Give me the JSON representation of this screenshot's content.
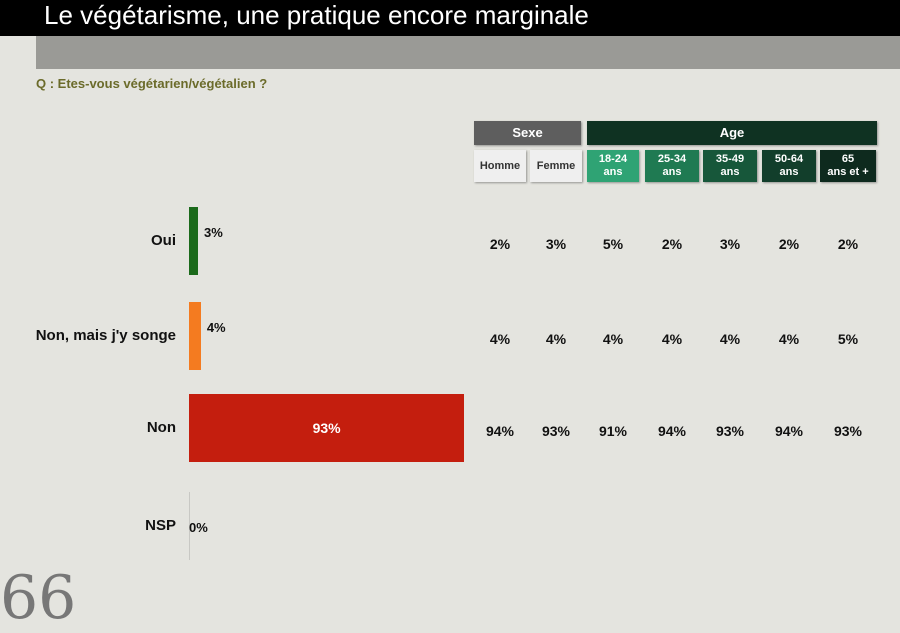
{
  "title": "Le végétarisme, une pratique encore marginale",
  "question": "Q : Etes-vous végétarien/végétalien ?",
  "headers": {
    "sexe": "Sexe",
    "age": "Age",
    "columns": [
      {
        "label": "Homme",
        "group": "sexe",
        "color": "#efefef"
      },
      {
        "label": "Femme",
        "group": "sexe",
        "color": "#efefef"
      },
      {
        "label": "18-24 ans",
        "group": "age",
        "color": "#2fa374"
      },
      {
        "label": "25-34 ans",
        "group": "age",
        "color": "#1f7a52"
      },
      {
        "label": "35-49 ans",
        "group": "age",
        "color": "#17573a"
      },
      {
        "label": "50-64 ans",
        "group": "age",
        "color": "#123e2b"
      },
      {
        "label": "65 ans et +",
        "group": "age",
        "color": "#0e2a1e"
      }
    ],
    "sexe_color": "#5e5e5e",
    "age_color": "#0f3222"
  },
  "chart_data": {
    "type": "bar",
    "title": "Le végétarisme, une pratique encore marginale",
    "categories": [
      "Oui",
      "Non, mais j'y songe",
      "Non",
      "NSP"
    ],
    "values": [
      3,
      4,
      93,
      0
    ],
    "value_labels": [
      "3%",
      "4%",
      "93%",
      "0%"
    ],
    "colors": [
      "#1b6a1b",
      "#f47b20",
      "#c41e0e",
      "#777777"
    ],
    "xlim": [
      0,
      100
    ],
    "table": {
      "columns": [
        "Homme",
        "Femme",
        "18-24 ans",
        "25-34 ans",
        "35-49 ans",
        "50-64 ans",
        "65 ans et +"
      ],
      "rows": [
        [
          "2%",
          "3%",
          "5%",
          "2%",
          "3%",
          "2%",
          "2%"
        ],
        [
          "4%",
          "4%",
          "4%",
          "4%",
          "4%",
          "4%",
          "5%"
        ],
        [
          "94%",
          "93%",
          "91%",
          "94%",
          "93%",
          "94%",
          "93%"
        ]
      ]
    }
  }
}
